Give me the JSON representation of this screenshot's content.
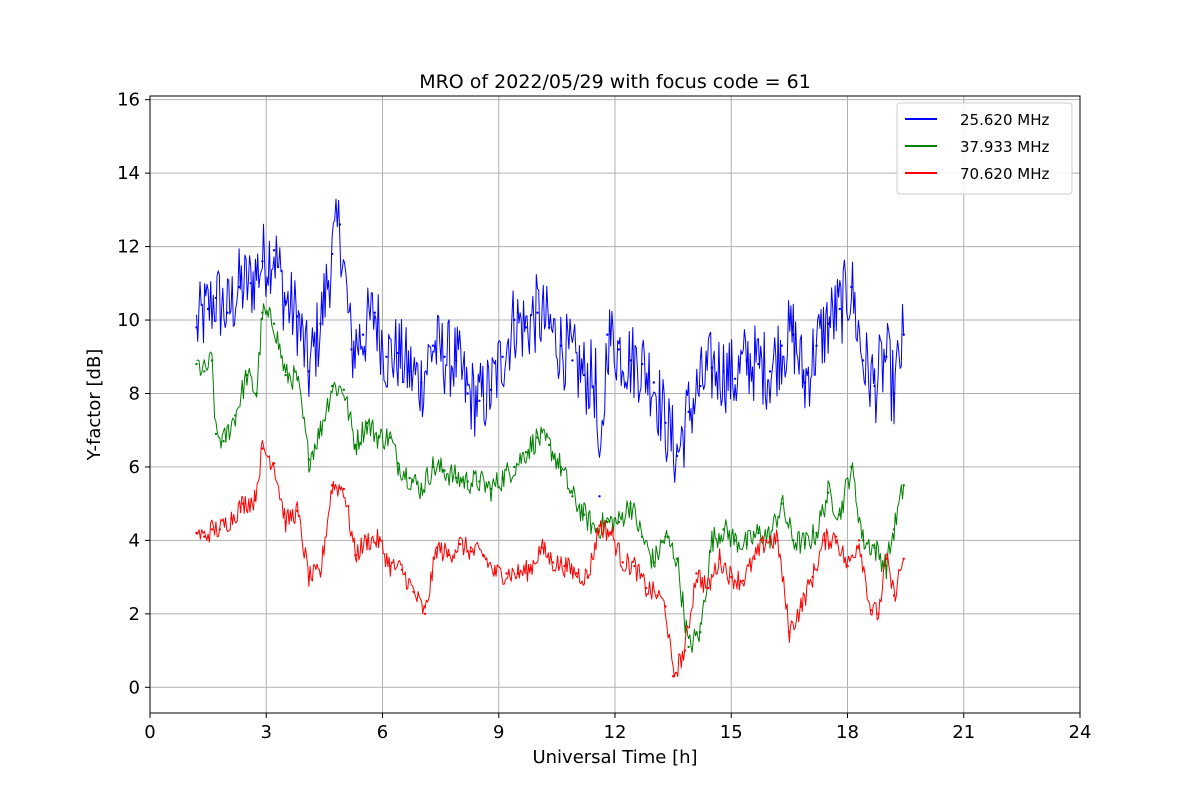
{
  "chart_data": {
    "type": "line",
    "title": "MRO of 2022/05/29 with focus code = 61",
    "xlabel": "Universal Time [h]",
    "ylabel": "Y-factor [dB]",
    "xlim": [
      0,
      24
    ],
    "ylim": [
      -0.7,
      16.1
    ],
    "xticks": [
      0,
      3,
      6,
      9,
      12,
      15,
      18,
      21,
      24
    ],
    "yticks": [
      0,
      2,
      4,
      6,
      8,
      10,
      12,
      14,
      16
    ],
    "grid": true,
    "legend_position": "top-right",
    "series": [
      {
        "name": "25.620 MHz",
        "color": "#0000ff",
        "x": [
          1.2,
          1.5,
          1.7,
          2.0,
          2.3,
          2.6,
          2.9,
          3.2,
          3.5,
          3.8,
          4.1,
          4.4,
          4.7,
          4.9,
          5.2,
          5.5,
          5.8,
          6.1,
          6.4,
          6.7,
          7.0,
          7.3,
          7.6,
          7.9,
          8.2,
          8.5,
          8.8,
          9.1,
          9.4,
          9.7,
          10.0,
          10.3,
          10.6,
          10.9,
          11.2,
          11.5,
          11.6,
          11.8,
          12.1,
          12.4,
          12.7,
          13.0,
          13.3,
          13.6,
          13.9,
          14.2,
          14.5,
          14.8,
          15.1,
          15.4,
          15.7,
          16.0,
          16.3,
          16.6,
          16.9,
          17.2,
          17.5,
          17.8,
          18.1,
          18.4,
          18.7,
          19.0,
          19.2,
          19.45
        ],
        "y": [
          9.8,
          10.3,
          10.6,
          10.2,
          10.9,
          11.0,
          11.6,
          11.9,
          10.5,
          10.1,
          8.6,
          9.9,
          11.8,
          12.6,
          9.2,
          9.6,
          10.2,
          9.0,
          9.1,
          8.6,
          8.3,
          9.3,
          9.0,
          8.9,
          8.0,
          7.8,
          8.1,
          9.0,
          10.0,
          9.8,
          10.2,
          9.8,
          9.3,
          8.9,
          8.5,
          8.3,
          5.2,
          9.6,
          9.2,
          8.9,
          8.8,
          8.3,
          7.2,
          6.3,
          7.5,
          8.2,
          8.7,
          8.6,
          8.4,
          8.9,
          8.8,
          8.6,
          9.3,
          9.6,
          8.3,
          9.3,
          9.9,
          10.3,
          10.9,
          8.9,
          8.2,
          9.0,
          8.0,
          9.6
        ]
      },
      {
        "name": "37.933 MHz",
        "color": "#008000",
        "x": [
          1.2,
          1.4,
          1.6,
          1.7,
          1.9,
          2.2,
          2.5,
          2.75,
          2.9,
          3.2,
          3.5,
          3.8,
          4.1,
          4.4,
          4.7,
          5.0,
          5.3,
          5.6,
          5.9,
          6.2,
          6.4,
          6.7,
          7.0,
          7.3,
          7.6,
          7.9,
          8.2,
          8.5,
          8.8,
          9.1,
          9.4,
          9.7,
          10.0,
          10.3,
          10.6,
          10.9,
          11.2,
          11.5,
          11.8,
          12.1,
          12.4,
          12.7,
          13.0,
          13.3,
          13.6,
          13.9,
          14.2,
          14.5,
          14.8,
          15.1,
          15.4,
          15.7,
          16.0,
          16.3,
          16.6,
          16.9,
          17.2,
          17.5,
          17.8,
          18.1,
          18.4,
          18.7,
          19.0,
          19.2,
          19.45
        ],
        "y": [
          8.8,
          8.6,
          8.9,
          6.9,
          6.7,
          7.4,
          8.5,
          8.0,
          10.2,
          9.9,
          8.5,
          8.4,
          6.2,
          7.0,
          8.2,
          8.1,
          6.6,
          7.2,
          6.8,
          6.8,
          6.1,
          5.7,
          5.4,
          6.0,
          5.9,
          5.7,
          5.6,
          5.6,
          5.4,
          5.7,
          6.0,
          6.4,
          6.8,
          6.6,
          6.0,
          5.2,
          4.7,
          4.3,
          4.5,
          4.5,
          5.0,
          4.1,
          3.4,
          4.1,
          3.5,
          1.1,
          1.5,
          4.0,
          4.3,
          4.0,
          3.9,
          4.2,
          4.1,
          5.0,
          4.0,
          3.9,
          4.2,
          5.3,
          4.7,
          6.0,
          4.0,
          3.8,
          3.3,
          4.3,
          5.5
        ]
      },
      {
        "name": "70.620 MHz",
        "color": "#ff0000",
        "x": [
          1.2,
          1.4,
          1.6,
          1.8,
          2.1,
          2.4,
          2.7,
          2.9,
          3.2,
          3.5,
          3.8,
          4.1,
          4.4,
          4.7,
          5.0,
          5.3,
          5.6,
          5.9,
          6.2,
          6.5,
          6.8,
          7.1,
          7.4,
          7.7,
          8.0,
          8.3,
          8.6,
          8.9,
          9.2,
          9.5,
          9.8,
          10.1,
          10.4,
          10.7,
          11.0,
          11.3,
          11.6,
          11.9,
          12.2,
          12.5,
          12.8,
          13.1,
          13.3,
          13.5,
          13.8,
          14.1,
          14.4,
          14.7,
          15.0,
          15.3,
          15.6,
          15.9,
          16.2,
          16.5,
          16.8,
          17.1,
          17.4,
          17.7,
          18.0,
          18.3,
          18.6,
          18.8,
          19.0,
          19.2,
          19.45
        ],
        "y": [
          4.2,
          4.1,
          4.3,
          4.3,
          4.6,
          5.0,
          5.1,
          6.5,
          6.1,
          4.5,
          4.8,
          3.0,
          3.1,
          5.5,
          5.4,
          3.6,
          4.0,
          4.0,
          3.3,
          3.2,
          2.6,
          2.0,
          3.8,
          3.6,
          3.9,
          3.7,
          3.6,
          3.1,
          3.1,
          3.1,
          3.2,
          3.8,
          3.4,
          3.3,
          3.1,
          3.0,
          4.4,
          4.2,
          3.4,
          3.3,
          2.7,
          2.5,
          2.2,
          0.3,
          1.0,
          3.1,
          2.7,
          3.5,
          3.0,
          2.9,
          3.5,
          4.0,
          4.0,
          1.5,
          2.2,
          3.0,
          4.0,
          4.1,
          3.3,
          4.0,
          2.1,
          2.0,
          3.5,
          2.5,
          3.5
        ]
      }
    ]
  }
}
